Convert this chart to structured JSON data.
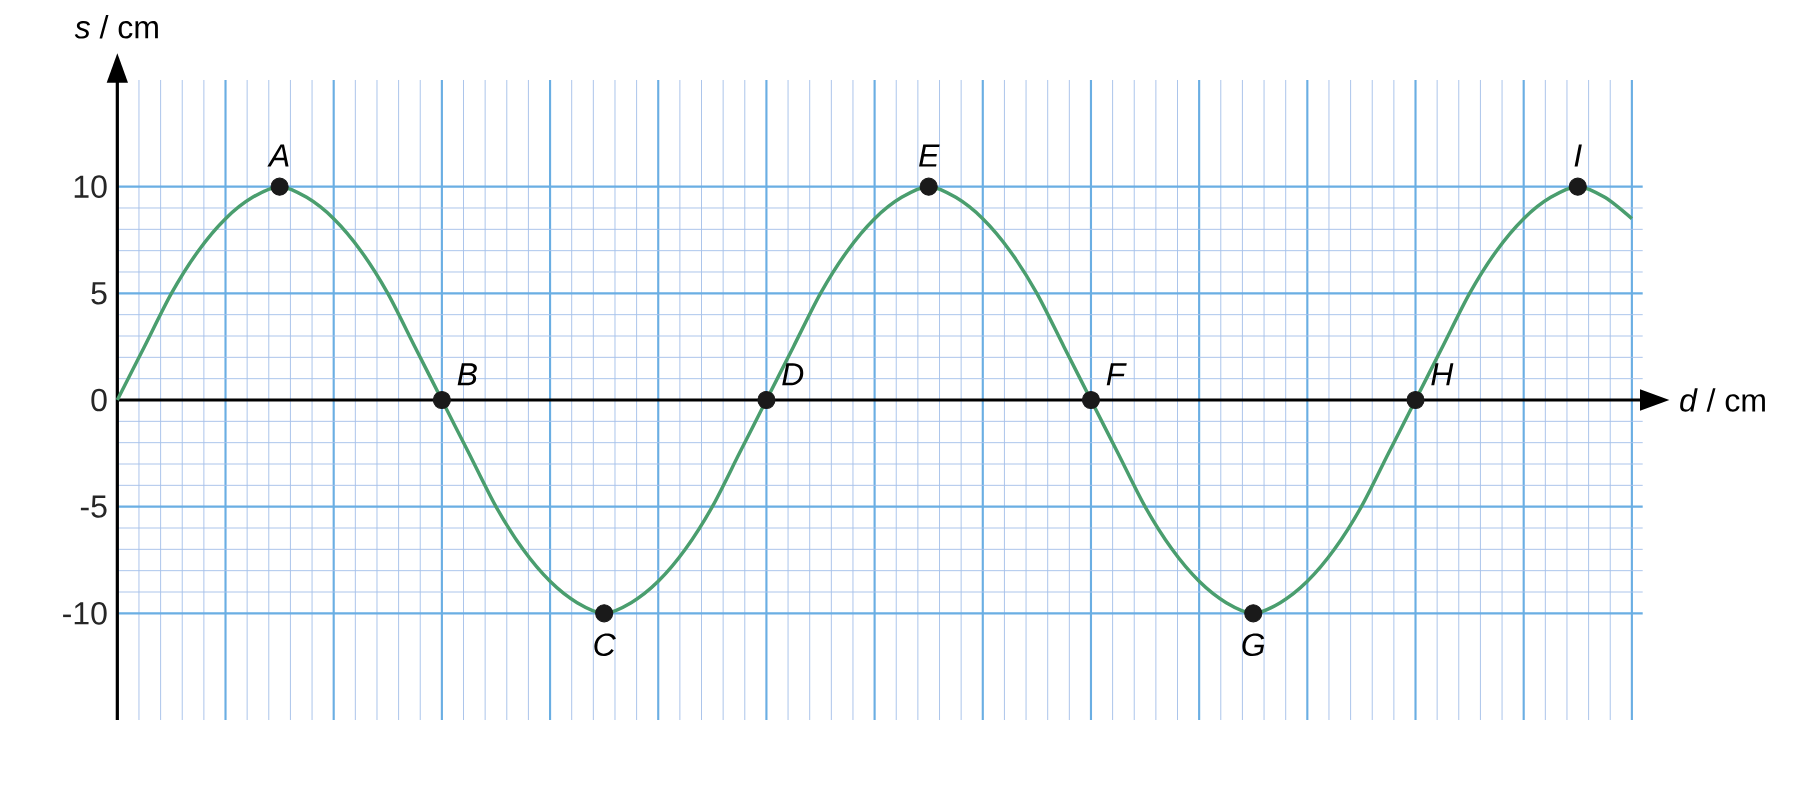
{
  "chart_data": {
    "type": "line",
    "xlabel": "*d* / cm",
    "ylabel": "*s* / cm",
    "categories": [
      null,
      null,
      null,
      null,
      null,
      null,
      null,
      null,
      null,
      null,
      null,
      null,
      null,
      null,
      null,
      null,
      null,
      null,
      null,
      null,
      null,
      null,
      null,
      null,
      null,
      null,
      null,
      null,
      null,
      null,
      null,
      null,
      null,
      null,
      null,
      null,
      null,
      null,
      null,
      null,
      null,
      null,
      null,
      null,
      null,
      null,
      null,
      null,
      null,
      null,
      null,
      null,
      null,
      null,
      null,
      null,
      null
    ],
    "ylim": [
      -15,
      15
    ],
    "yticks": [
      -10,
      -5,
      0,
      5,
      10
    ],
    "grid": true,
    "series": [
      {
        "color": "#4a9e6e",
        "values": [
          0,
          2.5,
          5,
          7,
          8.5,
          9.5,
          10,
          9.5,
          8.5,
          7,
          5,
          2.5,
          0,
          -2.5,
          -5,
          -7,
          -8.5,
          -9.5,
          -10,
          -9.5,
          -8.5,
          -7,
          -5,
          -2.5,
          0,
          2.5,
          5,
          7,
          8.5,
          9.5,
          10,
          9.5,
          8.5,
          7,
          5,
          2.5,
          0,
          -2.5,
          -5,
          -7,
          -8.5,
          -9.5,
          -10,
          -9.5,
          -8.5,
          -7,
          -5,
          -2.5,
          0,
          2.5,
          5,
          7,
          8.5,
          9.5,
          10,
          9.5,
          8.5
        ]
      },
      {
        "type": "scatter",
        "color": "#1a1a1a",
        "marker": "circle",
        "values": [
          null,
          null,
          null,
          null,
          null,
          null,
          10,
          null,
          null,
          null,
          null,
          null,
          0,
          null,
          null,
          null,
          null,
          null,
          -10,
          null,
          null,
          null,
          null,
          null,
          0,
          null,
          null,
          null,
          null,
          null,
          10,
          null,
          null,
          null,
          null,
          null,
          0,
          null,
          null,
          null,
          null,
          null,
          -10,
          null,
          null,
          null,
          null,
          null,
          0,
          null,
          null,
          null,
          null,
          null,
          10,
          null,
          null
        ],
        "value_labels": [
          null,
          null,
          null,
          null,
          null,
          null,
          "A",
          null,
          null,
          null,
          null,
          null,
          "B",
          null,
          null,
          null,
          null,
          null,
          "C",
          null,
          null,
          null,
          null,
          null,
          "D",
          null,
          null,
          null,
          null,
          null,
          "E",
          null,
          null,
          null,
          null,
          null,
          "F",
          null,
          null,
          null,
          null,
          null,
          "G",
          null,
          null,
          null,
          null,
          null,
          "H",
          null,
          null,
          null,
          null,
          null,
          "I",
          null,
          null
        ]
      }
    ]
  }
}
